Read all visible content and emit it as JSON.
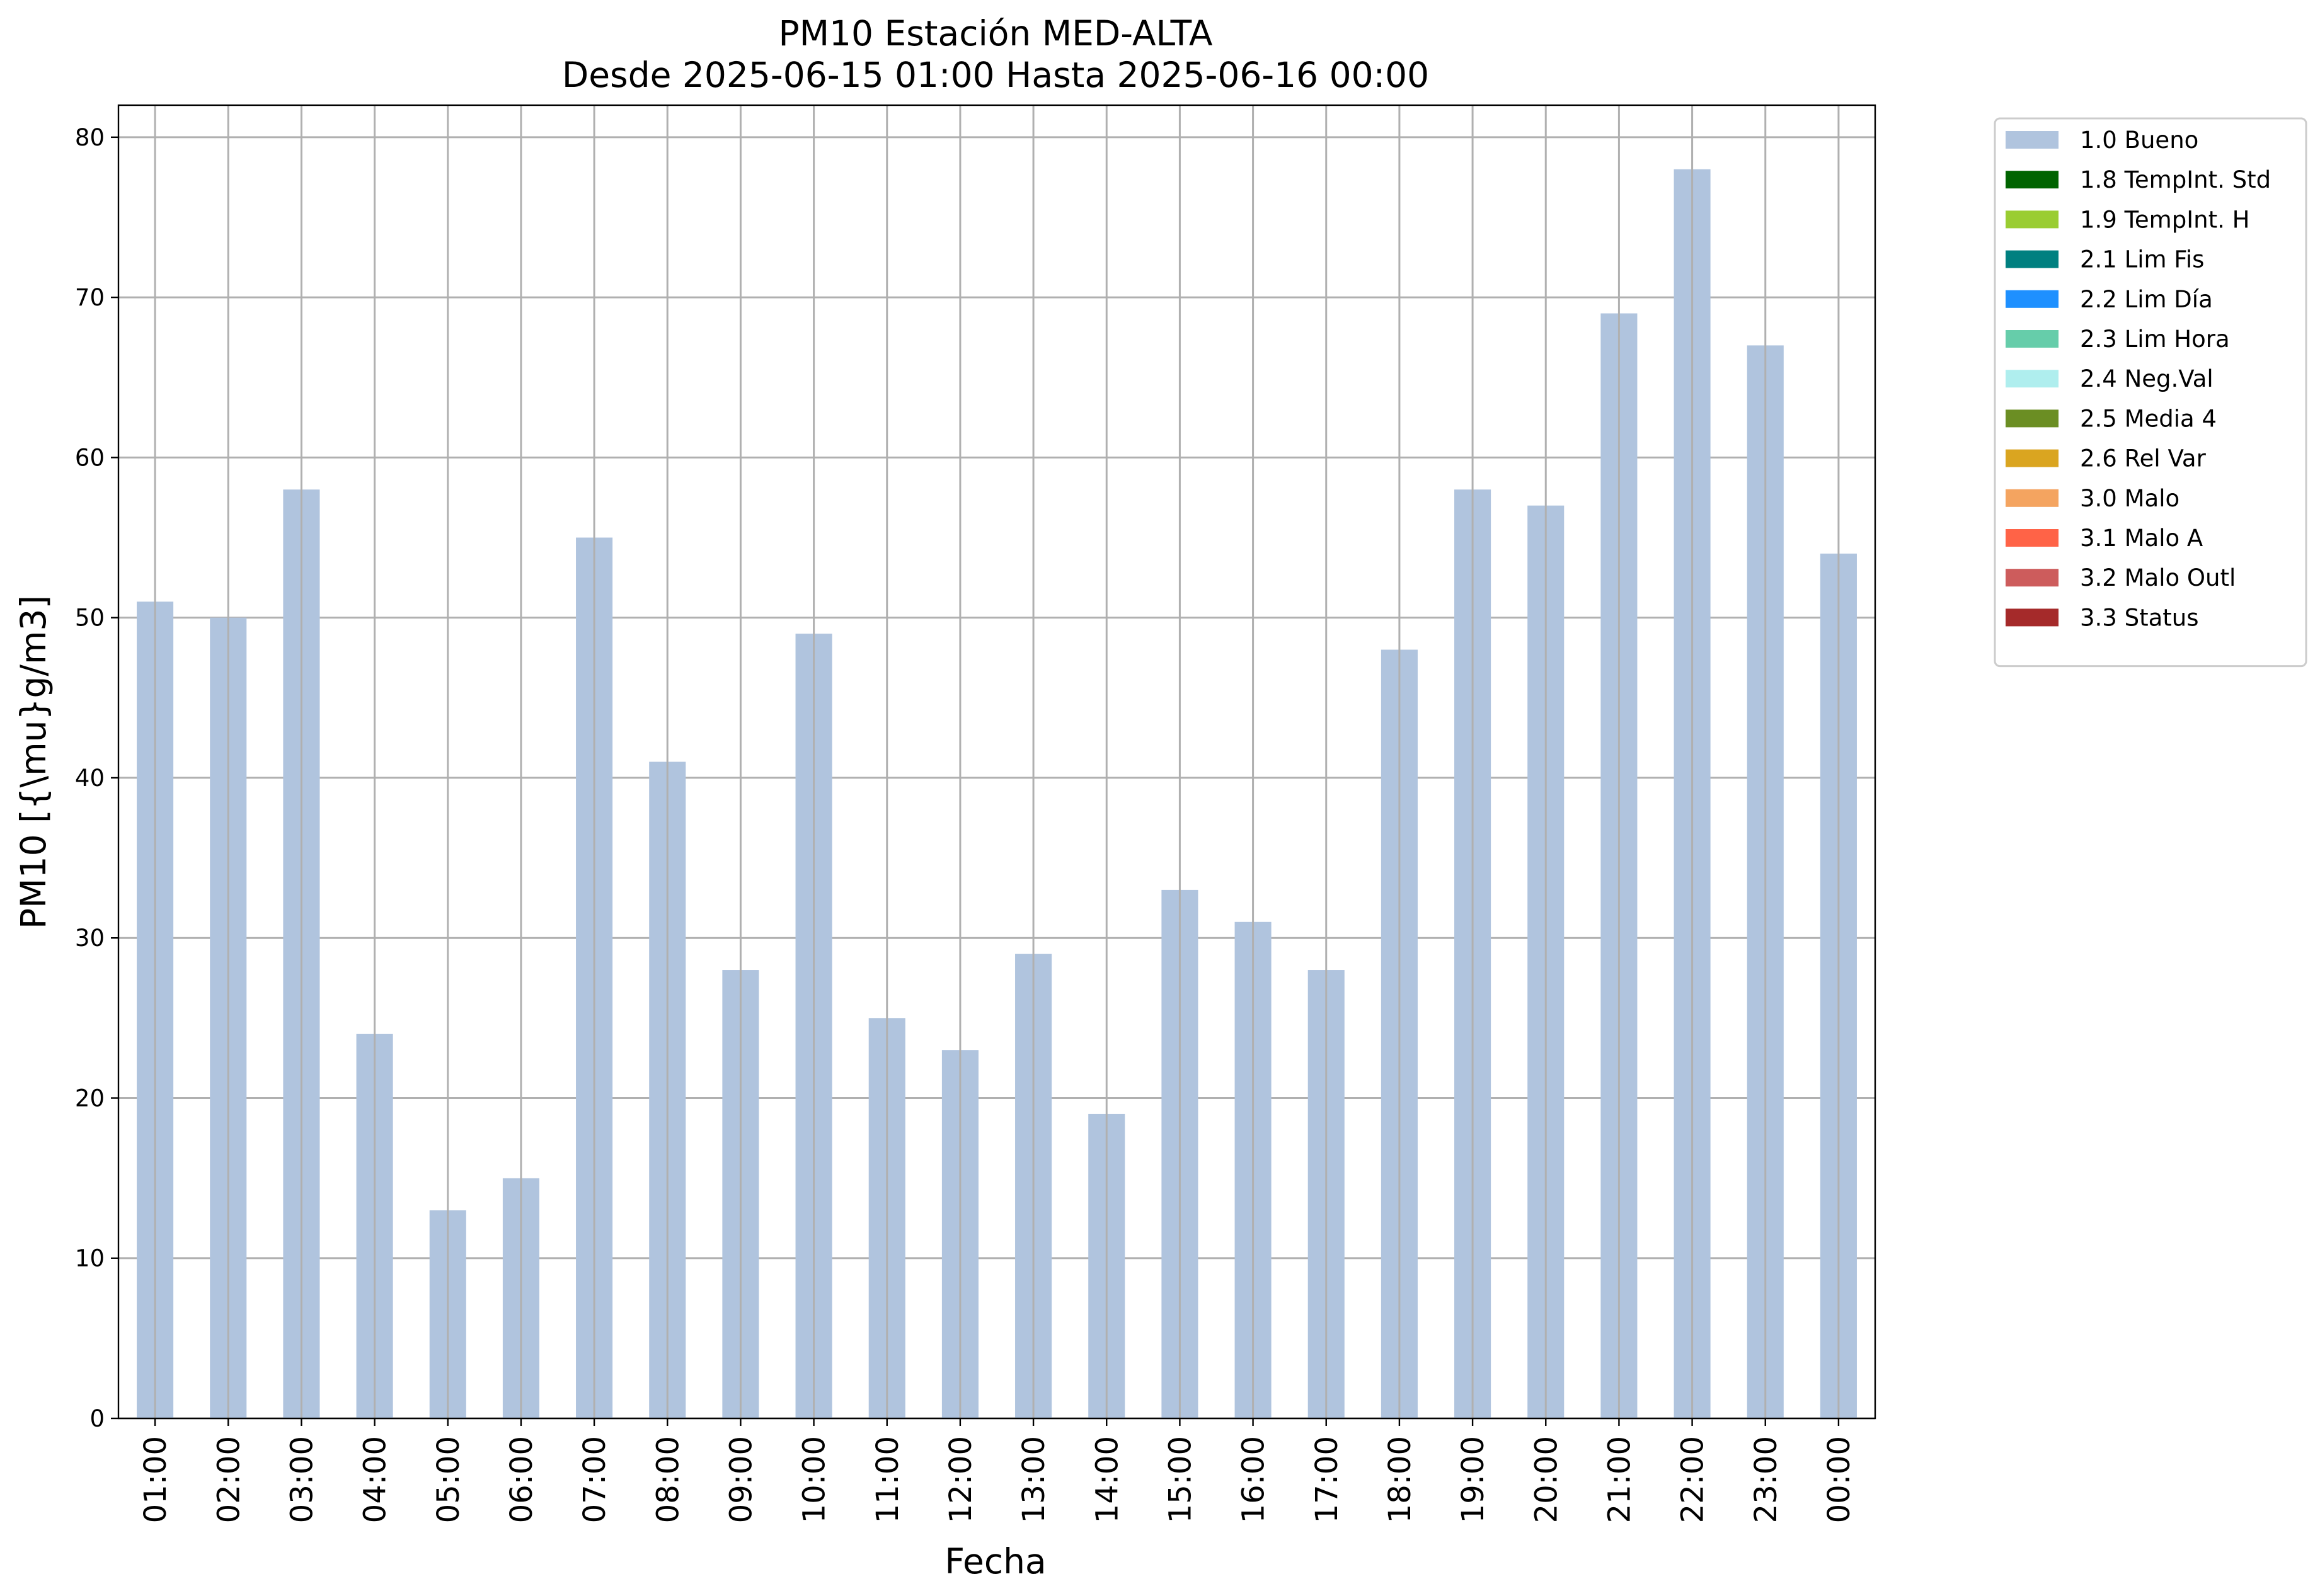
{
  "chart_data": {
    "type": "bar",
    "title": "PM10 Estación MED-ALTA",
    "subtitle": "Desde 2025-06-15 01:00 Hasta 2025-06-16 00:00",
    "xlabel": "Fecha",
    "ylabel": "PM10 [{\\mu}g/m3]",
    "categories": [
      "01:00",
      "02:00",
      "03:00",
      "04:00",
      "05:00",
      "06:00",
      "07:00",
      "08:00",
      "09:00",
      "10:00",
      "11:00",
      "12:00",
      "13:00",
      "14:00",
      "15:00",
      "16:00",
      "17:00",
      "18:00",
      "19:00",
      "20:00",
      "21:00",
      "22:00",
      "23:00",
      "00:00"
    ],
    "series": [
      {
        "name": "1.0 Bueno",
        "color": "#b0c4de",
        "values": [
          51,
          50,
          58,
          24,
          13,
          15,
          55,
          41,
          28,
          49,
          25,
          23,
          29,
          19,
          33,
          31,
          28,
          48,
          58,
          57,
          69,
          78,
          67,
          54
        ]
      }
    ],
    "ylim": [
      0,
      82
    ],
    "yticks": [
      0,
      10,
      20,
      30,
      40,
      50,
      60,
      70,
      80
    ],
    "grid": true,
    "legend_position": "outside-top-right",
    "legend": [
      {
        "label": "1.0 Bueno",
        "color": "#b0c4de"
      },
      {
        "label": "1.8 TempInt. Std",
        "color": "#006400"
      },
      {
        "label": "1.9 TempInt. H",
        "color": "#9acd32"
      },
      {
        "label": "2.1 Lim Fis",
        "color": "#008080"
      },
      {
        "label": "2.2 Lim Día",
        "color": "#1e90ff"
      },
      {
        "label": "2.3 Lim Hora",
        "color": "#66cdaa"
      },
      {
        "label": "2.4 Neg.Val",
        "color": "#afeeee"
      },
      {
        "label": "2.5 Media 4",
        "color": "#6b8e23"
      },
      {
        "label": "2.6 Rel Var",
        "color": "#daa520"
      },
      {
        "label": "3.0 Malo",
        "color": "#f4a460"
      },
      {
        "label": "3.1 Malo A",
        "color": "#ff6347"
      },
      {
        "label": "3.2 Malo Outl",
        "color": "#cd5c5c"
      },
      {
        "label": "3.3 Status",
        "color": "#a52a2a"
      }
    ]
  }
}
